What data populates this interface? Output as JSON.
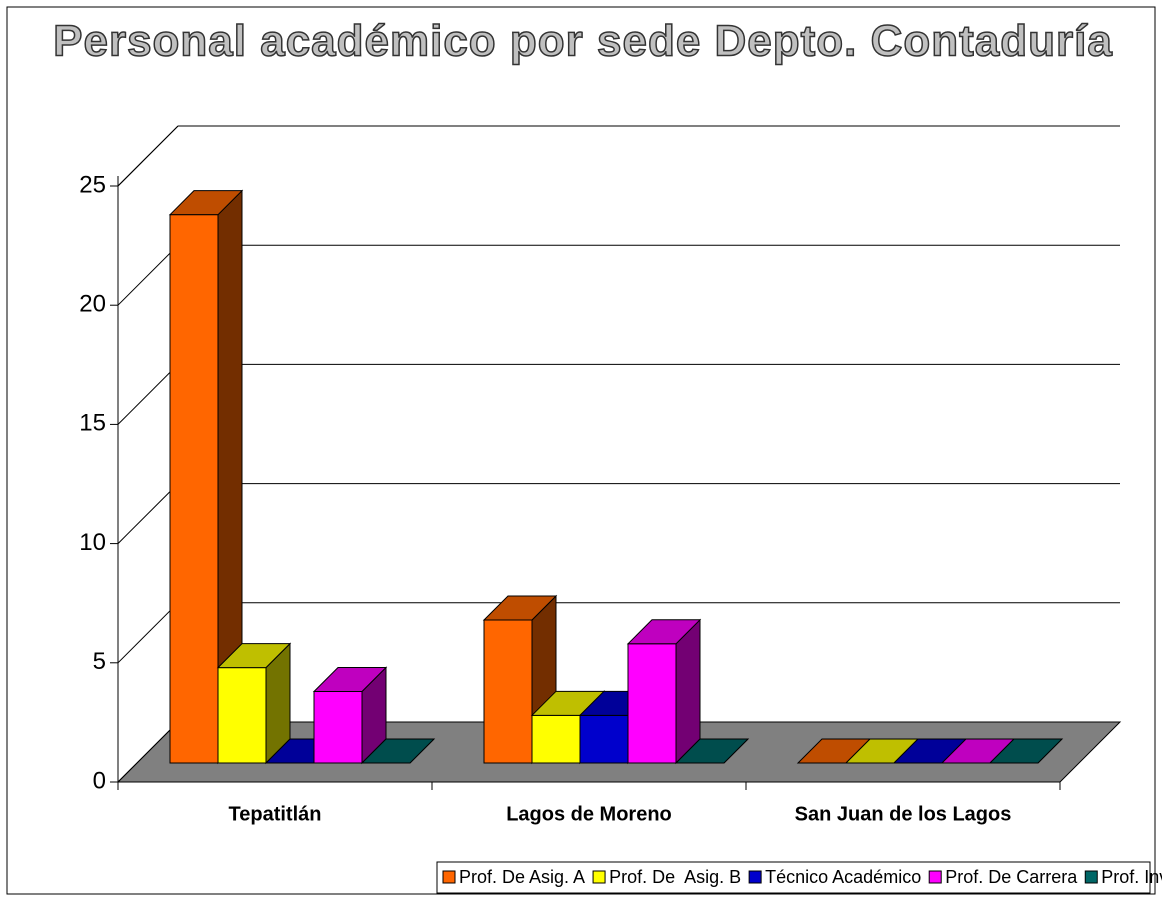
{
  "chart_data": {
    "type": "bar3d",
    "title": "Personal académico por sede Depto. Contaduría",
    "categories": [
      "Tepatitlán",
      "Lagos de Moreno",
      "San Juan de los Lagos"
    ],
    "series": [
      {
        "name": "Prof. De Asig. A",
        "color": "#ff6600",
        "values": [
          23,
          6,
          0
        ]
      },
      {
        "name": "Prof. De  Asig. B",
        "color": "#ffff00",
        "values": [
          4,
          2,
          0
        ]
      },
      {
        "name": "Técnico Académico",
        "color": "#0000cc",
        "values": [
          0,
          2,
          0
        ]
      },
      {
        "name": "Prof. De Carrera",
        "color": "#ff00ff",
        "values": [
          3,
          5,
          0
        ]
      },
      {
        "name": "Prof. Investigadores",
        "color": "#006666",
        "values": [
          0,
          0,
          0
        ]
      }
    ],
    "ylim": [
      0,
      25
    ],
    "yticks": [
      0,
      5,
      10,
      15,
      20,
      25
    ],
    "grid": true,
    "legend": "bottom"
  }
}
